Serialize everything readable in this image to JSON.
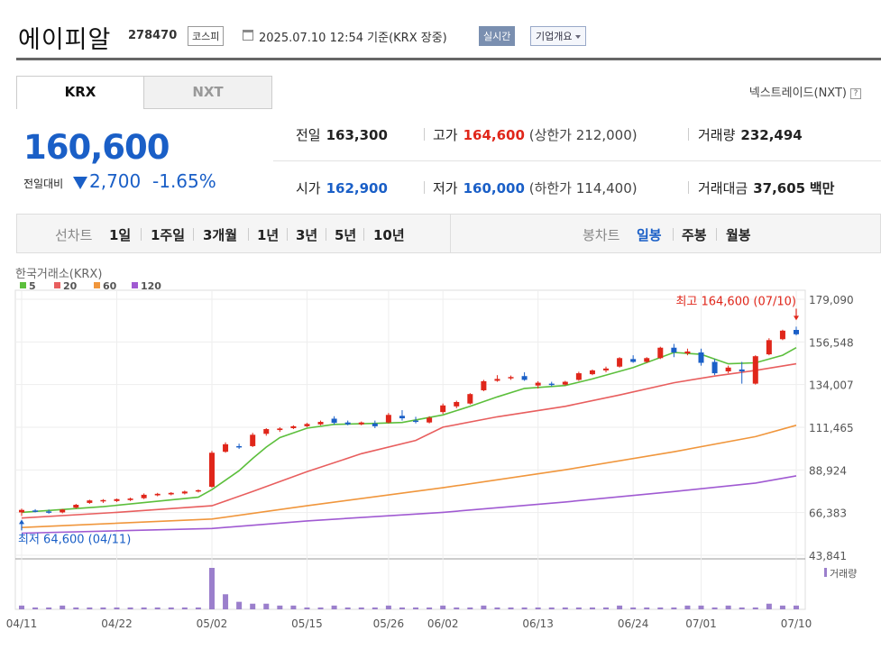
{
  "header": {
    "stock_name": "에이피알",
    "stock_code": "278470",
    "market": "코스피",
    "datetime": "2025.07.10 12:54  기준(KRX 장중)",
    "realtime_label": "실시간",
    "company_label": "기업개요"
  },
  "tabs": {
    "krx": "KRX",
    "nxt": "NXT"
  },
  "nxt_link": "넥스트레이드(NXT)",
  "price": {
    "current": "160,600",
    "change_label": "전일대비",
    "change": "2,700",
    "change_pct": "-1.65%"
  },
  "quote": {
    "prev_label": "전일",
    "prev": "163,300",
    "high_label": "고가",
    "high": "164,600",
    "upper_limit": "(상한가 212,000)",
    "volume_label": "거래량",
    "volume": "232,494",
    "open_label": "시가",
    "open": "162,900",
    "low_label": "저가",
    "low": "160,000",
    "lower_limit": "(하한가 114,400)",
    "amount_label": "거래대금",
    "amount": "37,605",
    "amount_unit": "백만"
  },
  "period": {
    "label": "선차트",
    "items": [
      "1일",
      "1주일",
      "3개월",
      "1년",
      "3년",
      "5년",
      "10년"
    ],
    "candle_label": "봉차트",
    "candle_items": [
      "일봉",
      "주봉",
      "월봉"
    ],
    "active_candle": "일봉"
  },
  "colors": {
    "up": "#e0261a",
    "down": "#1a5fc7",
    "ma5": "#5cbf3c",
    "ma20": "#e85e5e",
    "ma60": "#f0963c",
    "ma120": "#a05ad2",
    "volume": "#9b7fcc"
  },
  "chart_data": {
    "type": "candlestick",
    "source_label": "한국거래소(KRX)",
    "legend": [
      "5",
      "20",
      "60",
      "120"
    ],
    "volume_label": "거래량",
    "y_ticks": [
      "179,090",
      "156,548",
      "134,007",
      "111,465",
      "88,924",
      "66,383",
      "43,841"
    ],
    "ylim": [
      43841,
      179090
    ],
    "x_ticks": [
      {
        "label": "04/11",
        "index": 0
      },
      {
        "label": "04/22",
        "index": 7
      },
      {
        "label": "05/02",
        "index": 14
      },
      {
        "label": "05/15",
        "index": 21
      },
      {
        "label": "05/26",
        "index": 27
      },
      {
        "label": "06/02",
        "index": 31
      },
      {
        "label": "06/13",
        "index": 38
      },
      {
        "label": "06/24",
        "index": 45
      },
      {
        "label": "07/01",
        "index": 50
      },
      {
        "label": "07/10",
        "index": 57
      }
    ],
    "high_annotation": "최고 164,600 (07/10)",
    "high_index": 57,
    "high_value": 164600,
    "low_annotation": "최저 64,600 (04/11)",
    "low_index": 0,
    "low_value": 64600,
    "candles": [
      [
        66500,
        68500,
        64600,
        67800
      ],
      [
        67500,
        68200,
        66500,
        67000
      ],
      [
        67000,
        68000,
        65800,
        66500
      ],
      [
        66500,
        68300,
        66000,
        68000
      ],
      [
        69000,
        71000,
        68500,
        70500
      ],
      [
        71500,
        73200,
        71000,
        72800
      ],
      [
        72500,
        73500,
        71500,
        73000
      ],
      [
        72500,
        73800,
        72000,
        73500
      ],
      [
        73000,
        74300,
        72500,
        73800
      ],
      [
        74000,
        76500,
        73500,
        75800
      ],
      [
        75500,
        76800,
        75000,
        76300
      ],
      [
        76000,
        77200,
        75500,
        76800
      ],
      [
        76500,
        78000,
        76000,
        77500
      ],
      [
        77500,
        78600,
        77000,
        78200
      ],
      [
        80000,
        99000,
        79500,
        98000
      ],
      [
        98500,
        103500,
        98000,
        102500
      ],
      [
        101500,
        102800,
        100000,
        101000
      ],
      [
        101500,
        108500,
        101000,
        107500
      ],
      [
        108000,
        111000,
        107000,
        110500
      ],
      [
        110000,
        111500,
        109000,
        110800
      ],
      [
        111000,
        112500,
        110500,
        112000
      ],
      [
        112000,
        113800,
        111500,
        113200
      ],
      [
        113000,
        115000,
        112500,
        114300
      ],
      [
        116000,
        117300,
        112800,
        113800
      ],
      [
        114000,
        115000,
        112500,
        113000
      ],
      [
        113000,
        114500,
        112500,
        114000
      ],
      [
        113500,
        115000,
        111000,
        112000
      ],
      [
        114000,
        119000,
        113500,
        118000
      ],
      [
        117500,
        120500,
        115000,
        116200
      ],
      [
        115000,
        117000,
        113500,
        114500
      ],
      [
        114000,
        117300,
        113500,
        116500
      ],
      [
        119500,
        124000,
        118500,
        123000
      ],
      [
        122500,
        125500,
        121500,
        124800
      ],
      [
        124000,
        129500,
        123500,
        129000
      ],
      [
        131000,
        136500,
        130500,
        135800
      ],
      [
        136000,
        139000,
        135500,
        137000
      ],
      [
        137500,
        138800,
        136500,
        138000
      ],
      [
        138500,
        140500,
        136000,
        136500
      ],
      [
        133500,
        135800,
        132000,
        135000
      ],
      [
        134500,
        135500,
        133000,
        134000
      ],
      [
        134000,
        136000,
        133500,
        135500
      ],
      [
        136500,
        140800,
        136000,
        140000
      ],
      [
        139500,
        142000,
        139000,
        141500
      ],
      [
        141500,
        143500,
        140500,
        142500
      ],
      [
        143500,
        148500,
        143000,
        148000
      ],
      [
        147500,
        149500,
        145500,
        146000
      ],
      [
        146000,
        148500,
        145500,
        148000
      ],
      [
        148000,
        154000,
        147500,
        153500
      ],
      [
        153500,
        155500,
        148500,
        151000
      ],
      [
        150500,
        153000,
        149500,
        151500
      ],
      [
        151000,
        153000,
        144000,
        145500
      ],
      [
        146000,
        147500,
        139000,
        140000
      ],
      [
        141000,
        144000,
        140000,
        143000
      ],
      [
        142000,
        146000,
        134500,
        141000
      ],
      [
        134500,
        149500,
        134000,
        149000
      ],
      [
        150000,
        158500,
        149500,
        157500
      ],
      [
        158000,
        163000,
        157500,
        162500
      ],
      [
        162900,
        164600,
        160000,
        160600
      ]
    ],
    "ma5": [
      [
        0,
        66500
      ],
      [
        6,
        69500
      ],
      [
        13,
        74500
      ],
      [
        14,
        78500
      ],
      [
        15,
        83500
      ],
      [
        16,
        88500
      ],
      [
        17,
        95000
      ],
      [
        18,
        101000
      ],
      [
        19,
        106000
      ],
      [
        20,
        108500
      ],
      [
        21,
        111000
      ],
      [
        23,
        113000
      ],
      [
        26,
        113500
      ],
      [
        28,
        114000
      ],
      [
        31,
        118000
      ],
      [
        33,
        122500
      ],
      [
        35,
        127500
      ],
      [
        37,
        132000
      ],
      [
        40,
        133500
      ],
      [
        42,
        137000
      ],
      [
        45,
        143000
      ],
      [
        48,
        151000
      ],
      [
        50,
        150000
      ],
      [
        52,
        145000
      ],
      [
        54,
        145500
      ],
      [
        56,
        149500
      ],
      [
        57,
        153500
      ]
    ],
    "ma20": [
      [
        0,
        63500
      ],
      [
        7,
        66500
      ],
      [
        14,
        70000
      ],
      [
        17,
        77500
      ],
      [
        21,
        88000
      ],
      [
        25,
        97500
      ],
      [
        29,
        104500
      ],
      [
        31,
        111500
      ],
      [
        35,
        117000
      ],
      [
        40,
        122500
      ],
      [
        44,
        128500
      ],
      [
        48,
        135000
      ],
      [
        51,
        138500
      ],
      [
        54,
        141500
      ],
      [
        57,
        145000
      ]
    ],
    "ma60": [
      [
        0,
        58500
      ],
      [
        14,
        63000
      ],
      [
        21,
        70000
      ],
      [
        31,
        79500
      ],
      [
        40,
        89000
      ],
      [
        48,
        98500
      ],
      [
        54,
        106500
      ],
      [
        57,
        112500
      ]
    ],
    "ma120": [
      [
        0,
        55500
      ],
      [
        14,
        58000
      ],
      [
        21,
        62000
      ],
      [
        31,
        66500
      ],
      [
        40,
        72000
      ],
      [
        48,
        77500
      ],
      [
        54,
        82000
      ],
      [
        57,
        85800
      ]
    ],
    "volume": [
      2,
      1,
      1,
      2,
      1,
      1,
      1,
      1,
      1,
      1,
      1,
      1,
      1,
      1,
      22,
      8,
      4,
      3,
      3,
      2,
      2,
      1,
      1,
      2,
      1,
      1,
      1,
      2,
      1,
      1,
      1,
      2,
      1,
      1,
      2,
      1,
      1,
      1,
      1,
      1,
      1,
      1,
      1,
      1,
      2,
      1,
      1,
      1,
      1,
      2,
      2,
      1,
      2,
      1,
      1,
      3,
      2,
      2
    ]
  }
}
